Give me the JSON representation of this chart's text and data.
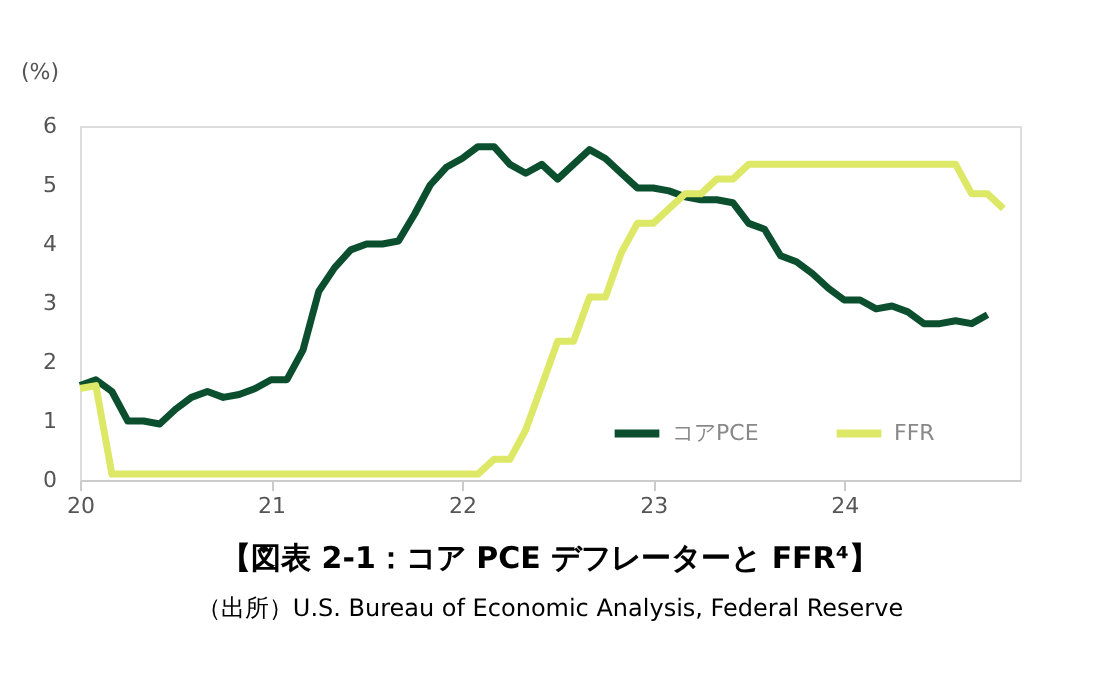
{
  "chart_data": {
    "type": "line",
    "title": "【図表 2-1：コア PCE デフレーターと FFR⁴】",
    "ylabel": "(%)",
    "annotations": [
      "（出所）U.S. Bureau of Economic Analysis, Federal Reserve"
    ],
    "xlim": [
      20,
      24.92
    ],
    "xticks": [
      20,
      21,
      22,
      23,
      24
    ],
    "ylim": [
      0,
      6
    ],
    "yticks": [
      0,
      1,
      2,
      3,
      4,
      5,
      6
    ],
    "grid": false,
    "legend": "bottom right",
    "marker": "none",
    "line_style": "solid",
    "series": [
      {
        "name": "コアPCE",
        "color": "#0b4f2e",
        "x": [
          20,
          20.083,
          20.167,
          20.25,
          20.333,
          20.417,
          20.5,
          20.583,
          20.667,
          20.75,
          20.833,
          20.917,
          21,
          21.083,
          21.167,
          21.25,
          21.333,
          21.417,
          21.5,
          21.583,
          21.667,
          21.75,
          21.833,
          21.917,
          22,
          22.083,
          22.167,
          22.25,
          22.333,
          22.417,
          22.5,
          22.583,
          22.667,
          22.75,
          22.833,
          22.917,
          23,
          23.083,
          23.167,
          23.25,
          23.333,
          23.417,
          23.5,
          23.583,
          23.667,
          23.75,
          23.833,
          23.917,
          24,
          24.083,
          24.167,
          24.25,
          24.333,
          24.417,
          24.5,
          24.583,
          24.667,
          24.75
        ],
        "values": [
          1.6,
          1.7,
          1.5,
          1.0,
          1.0,
          0.95,
          1.2,
          1.4,
          1.5,
          1.4,
          1.45,
          1.55,
          1.7,
          1.7,
          2.2,
          3.2,
          3.6,
          3.9,
          4.0,
          4.0,
          4.05,
          4.5,
          5.0,
          5.3,
          5.45,
          5.65,
          5.65,
          5.35,
          5.2,
          5.35,
          5.1,
          5.35,
          5.6,
          5.45,
          5.2,
          4.95,
          4.95,
          4.9,
          4.8,
          4.75,
          4.75,
          4.7,
          4.35,
          4.25,
          3.8,
          3.7,
          3.5,
          3.25,
          3.05,
          3.05,
          2.9,
          2.95,
          2.85,
          2.65,
          2.65,
          2.7,
          2.65,
          2.8
        ]
      },
      {
        "name": "FFR",
        "color": "#dde866",
        "x": [
          20,
          20.083,
          20.167,
          20.25,
          20.333,
          20.417,
          20.5,
          20.583,
          20.667,
          20.75,
          20.833,
          20.917,
          21,
          21.083,
          21.167,
          21.25,
          21.333,
          21.417,
          21.5,
          21.583,
          21.667,
          21.75,
          21.833,
          21.917,
          22,
          22.083,
          22.167,
          22.25,
          22.333,
          22.417,
          22.5,
          22.583,
          22.667,
          22.75,
          22.833,
          22.917,
          23,
          23.083,
          23.167,
          23.25,
          23.333,
          23.417,
          23.5,
          23.583,
          23.667,
          23.75,
          23.833,
          23.917,
          24,
          24.083,
          24.167,
          24.25,
          24.333,
          24.417,
          24.5,
          24.583,
          24.667,
          24.75,
          24.833
        ],
        "values": [
          1.55,
          1.6,
          0.1,
          0.1,
          0.1,
          0.1,
          0.1,
          0.1,
          0.1,
          0.1,
          0.1,
          0.1,
          0.1,
          0.1,
          0.1,
          0.1,
          0.1,
          0.1,
          0.1,
          0.1,
          0.1,
          0.1,
          0.1,
          0.1,
          0.1,
          0.1,
          0.35,
          0.35,
          0.85,
          1.6,
          2.35,
          2.35,
          3.1,
          3.1,
          3.85,
          4.35,
          4.35,
          4.6,
          4.85,
          4.85,
          5.1,
          5.1,
          5.35,
          5.35,
          5.35,
          5.35,
          5.35,
          5.35,
          5.35,
          5.35,
          5.35,
          5.35,
          5.35,
          5.35,
          5.35,
          5.35,
          4.85,
          4.85,
          4.6
        ]
      }
    ]
  }
}
